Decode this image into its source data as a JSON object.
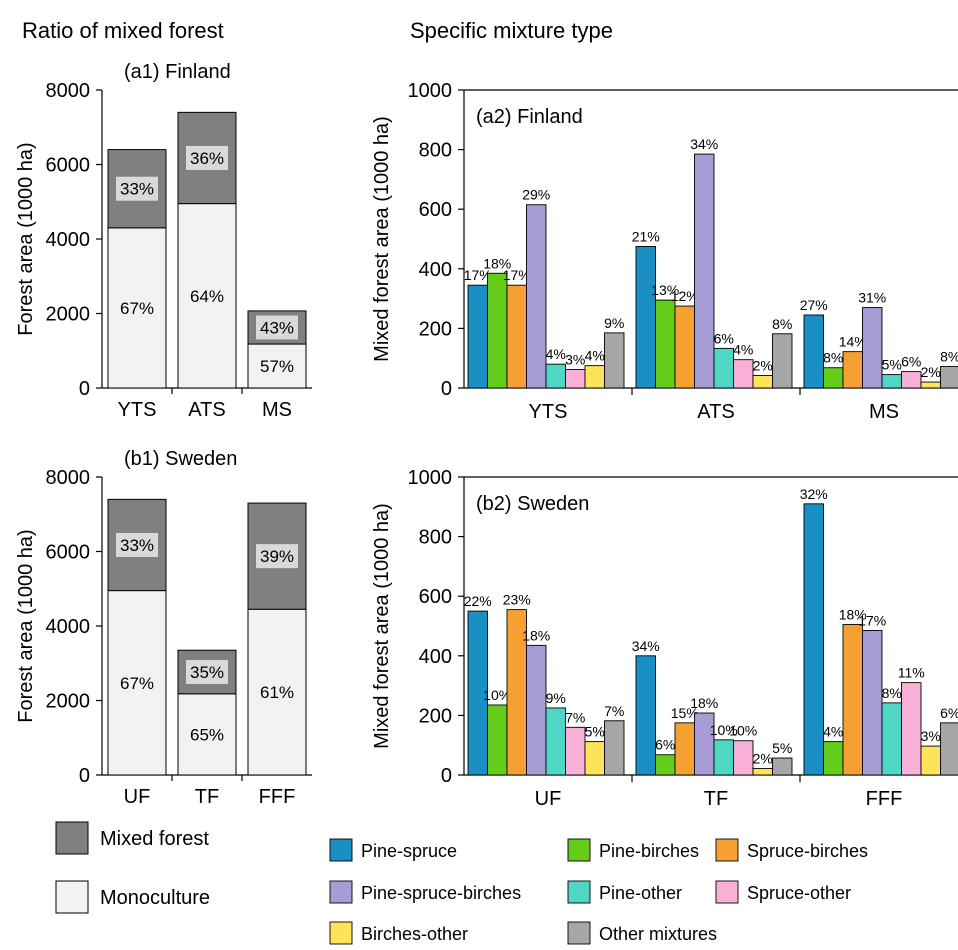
{
  "headers": {
    "left": "Ratio of mixed forest",
    "right": "Specific mixture type"
  },
  "colors": {
    "mixed": "#808080",
    "mono": "#f2f2f2",
    "label_box": "#d9d9d9",
    "series": [
      "#1a8fc4",
      "#66cc1a",
      "#f5a030",
      "#a89cd6",
      "#4fd6c4",
      "#f9b0d6",
      "#fde25a",
      "#a6a6a6"
    ]
  },
  "legend_left": [
    {
      "name": "Mixed forest",
      "color": "#808080"
    },
    {
      "name": "Monoculture",
      "color": "#f2f2f2"
    }
  ],
  "chart_data": [
    {
      "type": "bar",
      "title": "(a1) Finland",
      "ylabel": "Forest area (1000 ha)",
      "ylim": [
        0,
        8000
      ],
      "yticks": [
        "0",
        "2000",
        "4000",
        "6000",
        "8000"
      ],
      "categories": [
        "YTS",
        "ATS",
        "MS"
      ],
      "series": [
        {
          "name": "Monoculture",
          "values": [
            4300,
            4950,
            1180
          ]
        },
        {
          "name": "Mixed forest",
          "values": [
            2100,
            2450,
            890
          ]
        }
      ],
      "mixed_labels": [
        "33%",
        "36%",
        "43%"
      ],
      "mono_labels": [
        "67%",
        "64%",
        "57%"
      ]
    },
    {
      "type": "bar",
      "title": "(a2) Finland",
      "ylabel": "Mixed forest area (1000 ha)",
      "ylim": [
        0,
        1000
      ],
      "yticks": [
        "0",
        "200",
        "400",
        "600",
        "800",
        "1000"
      ],
      "categories": [
        "YTS",
        "ATS",
        "MS"
      ],
      "series": [
        {
          "name": "Pine-spruce",
          "values": [
            345,
            475,
            245
          ],
          "labels": [
            "17%",
            "21%",
            "27%"
          ]
        },
        {
          "name": "Pine-birches",
          "values": [
            385,
            295,
            68
          ],
          "labels": [
            "18%",
            "13%",
            "8%"
          ]
        },
        {
          "name": "Spruce-birches",
          "values": [
            345,
            275,
            122
          ],
          "labels": [
            "17%",
            "12%",
            "14%"
          ]
        },
        {
          "name": "Pine-spruce-birches",
          "values": [
            615,
            785,
            270
          ],
          "labels": [
            "29%",
            "34%",
            "31%"
          ]
        },
        {
          "name": "Pine-other",
          "values": [
            80,
            133,
            45
          ],
          "labels": [
            "4%",
            "6%",
            "5%"
          ]
        },
        {
          "name": "Spruce-other",
          "values": [
            62,
            95,
            55
          ],
          "labels": [
            "3%",
            "4%",
            "6%"
          ]
        },
        {
          "name": "Birches-other",
          "values": [
            75,
            42,
            20
          ],
          "labels": [
            "4%",
            "2%",
            "2%"
          ]
        },
        {
          "name": "Other mixtures",
          "values": [
            185,
            182,
            72
          ],
          "labels": [
            "9%",
            "8%",
            "8%"
          ]
        }
      ]
    },
    {
      "type": "bar",
      "title": "(b1) Sweden",
      "ylabel": "Forest area (1000 ha)",
      "ylim": [
        0,
        8000
      ],
      "yticks": [
        "0",
        "2000",
        "4000",
        "6000",
        "8000"
      ],
      "categories": [
        "UF",
        "TF",
        "FFF"
      ],
      "series": [
        {
          "name": "Monoculture",
          "values": [
            4950,
            2180,
            4450
          ]
        },
        {
          "name": "Mixed forest",
          "values": [
            2450,
            1170,
            2850
          ]
        }
      ],
      "mixed_labels": [
        "33%",
        "35%",
        "39%"
      ],
      "mono_labels": [
        "67%",
        "65%",
        "61%"
      ]
    },
    {
      "type": "bar",
      "title": "(b2) Sweden",
      "ylabel": "Mixed forest area (1000 ha)",
      "ylim": [
        0,
        1000
      ],
      "yticks": [
        "0",
        "200",
        "400",
        "600",
        "800",
        "1000"
      ],
      "categories": [
        "UF",
        "TF",
        "FFF"
      ],
      "series": [
        {
          "name": "Pine-spruce",
          "values": [
            550,
            400,
            910
          ],
          "labels": [
            "22%",
            "34%",
            "32%"
          ]
        },
        {
          "name": "Pine-birches",
          "values": [
            235,
            68,
            112
          ],
          "labels": [
            "10%",
            "6%",
            "4%"
          ]
        },
        {
          "name": "Spruce-birches",
          "values": [
            555,
            175,
            505
          ],
          "labels": [
            "23%",
            "15%",
            "18%"
          ]
        },
        {
          "name": "Pine-spruce-birches",
          "values": [
            435,
            208,
            485
          ],
          "labels": [
            "18%",
            "18%",
            "17%"
          ]
        },
        {
          "name": "Pine-other",
          "values": [
            225,
            118,
            242
          ],
          "labels": [
            "9%",
            "10%",
            "8%"
          ]
        },
        {
          "name": "Spruce-other",
          "values": [
            160,
            115,
            310
          ],
          "labels": [
            "7%",
            "10%",
            "11%"
          ]
        },
        {
          "name": "Birches-other",
          "values": [
            112,
            22,
            97
          ],
          "labels": [
            "5%",
            "2%",
            "3%"
          ]
        },
        {
          "name": "Other mixtures",
          "values": [
            182,
            57,
            175
          ],
          "labels": [
            "7%",
            "5%",
            "6%"
          ]
        }
      ]
    }
  ]
}
